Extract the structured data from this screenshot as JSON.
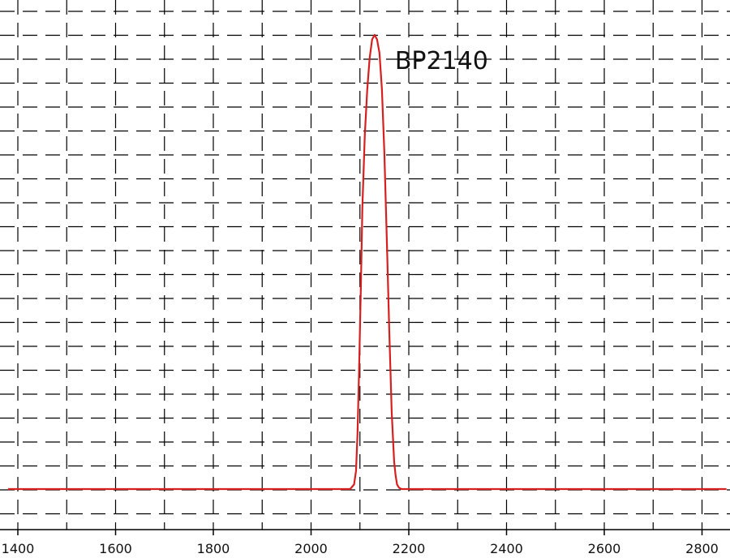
{
  "chart_data": {
    "type": "line",
    "title": "",
    "xlabel": "",
    "ylabel": "",
    "xlim": [
      1380,
      2850
    ],
    "ylim": [
      0,
      100
    ],
    "x_ticks": [
      1400,
      1600,
      1800,
      2000,
      2200,
      2400,
      2600,
      2800
    ],
    "x_tick_labels": [
      "1400",
      "1600",
      "1800",
      "2000",
      "2200",
      "2400",
      "2600",
      "2800"
    ],
    "grid": {
      "vertical": "dashed",
      "horizontal": "dashed"
    },
    "series": [
      {
        "color": "#d62020",
        "x": [
          1380,
          1800,
          2080,
          2088,
          2092,
          2095,
          2098,
          2102,
          2105,
          2110,
          2115,
          2120,
          2125,
          2130,
          2135,
          2140,
          2145,
          2150,
          2155,
          2160,
          2165,
          2170,
          2173,
          2176,
          2180,
          2185,
          2200,
          2850
        ],
        "y": [
          0,
          0,
          0,
          1,
          4,
          12,
          25,
          45,
          62,
          78,
          88,
          95,
          99,
          100,
          99,
          96,
          88,
          74,
          55,
          35,
          17,
          6,
          3,
          1,
          0.3,
          0,
          0,
          0
        ]
      }
    ],
    "annotations": [
      {
        "text": "BP2140",
        "x": 2140,
        "y": 93
      }
    ]
  }
}
